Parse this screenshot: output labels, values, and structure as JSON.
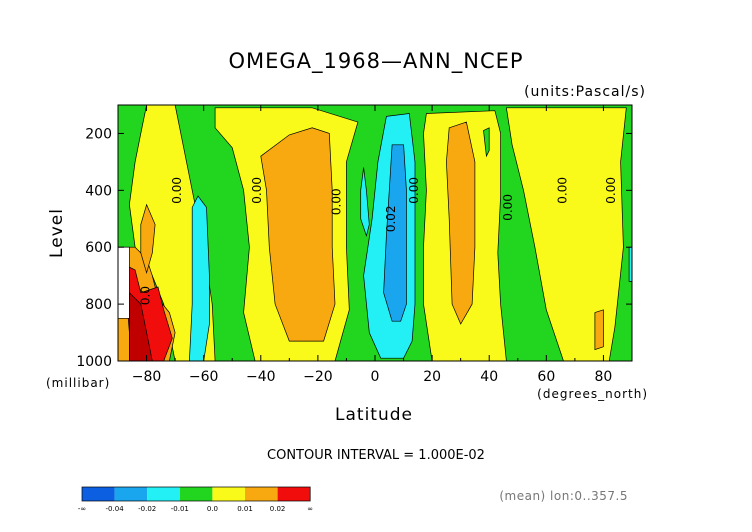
{
  "chart_data": {
    "type": "heatmap",
    "title": "OMEGA_1968—ANN_NCEP",
    "units_label": "(units:Pascal/s)",
    "xlabel": "Latitude",
    "ylabel": "Level",
    "x_unit_label": "(degrees_north)",
    "y_unit_label": "(millibar)",
    "xlim": [
      -90,
      90
    ],
    "ylim": [
      1000,
      100
    ],
    "x_ticks": [
      -80,
      -60,
      -40,
      -20,
      0,
      20,
      40,
      60,
      80
    ],
    "x_tick_labels": [
      "−80",
      "−60",
      "−40",
      "−20",
      "0",
      "20",
      "40",
      "60",
      "80"
    ],
    "y_ticks": [
      200,
      400,
      600,
      800,
      1000
    ],
    "y_tick_labels": [
      "200",
      "400",
      "600",
      "800",
      "1000"
    ],
    "contour_interval_text": "CONTOUR INTERVAL = 1.000E-02",
    "footnote": "(mean) lon:0..357.5",
    "contour_labels": [
      {
        "text": "0.00",
        "lat": -68,
        "p": 400
      },
      {
        "text": "0.00",
        "lat": -40,
        "p": 400
      },
      {
        "text": "0.00",
        "lat": -12,
        "p": 440
      },
      {
        "text": "0.02",
        "lat": 7,
        "p": 500
      },
      {
        "text": "0.00",
        "lat": 15,
        "p": 400
      },
      {
        "text": "0.00",
        "lat": 48,
        "p": 460
      },
      {
        "text": "0.00",
        "lat": 67,
        "p": 400
      },
      {
        "text": "0.00",
        "lat": 84,
        "p": 400
      },
      {
        "text": "0.0",
        "lat": -79,
        "p": 770
      }
    ],
    "colorbar": {
      "colors": [
        "#0b5fe0",
        "#1aa6ee",
        "#22f0f5",
        "#22d51f",
        "#fafa1a",
        "#f7a90f",
        "#f20d0d"
      ],
      "labels": [
        "-∞",
        "-0.04",
        "-0.02",
        "-0.01",
        "0.0",
        "0.01",
        "0.02",
        "∞"
      ]
    },
    "regions": [
      {
        "name": "background-zero-band",
        "level": "0.0 to 0.01",
        "color": "#22d51f",
        "lat": [
          -90,
          90
        ],
        "p": [
          100,
          1000
        ]
      },
      {
        "name": "yellow-south-polar",
        "level": "0.01 to 0.02",
        "color": "#fafa1a",
        "poly": [
          [
            -80,
            100
          ],
          [
            -70,
            100
          ],
          [
            -68,
            200
          ],
          [
            -64,
            400
          ],
          [
            -60,
            600
          ],
          [
            -57,
            800
          ],
          [
            -56,
            1000
          ],
          [
            -70,
            1000
          ],
          [
            -74,
            800
          ],
          [
            -78,
            700
          ],
          [
            -84,
            600
          ],
          [
            -86,
            450
          ],
          [
            -84,
            300
          ],
          [
            -82,
            200
          ]
        ]
      },
      {
        "name": "yellow-south-subtropics",
        "level": "0.0 to 0.01",
        "color": "#fafa1a",
        "poly": [
          [
            -56,
            110
          ],
          [
            -22,
            110
          ],
          [
            -6,
            160
          ],
          [
            -10,
            300
          ],
          [
            -10,
            600
          ],
          [
            -9,
            820
          ],
          [
            -14,
            1000
          ],
          [
            -42,
            1000
          ],
          [
            -46,
            830
          ],
          [
            -44,
            600
          ],
          [
            -46,
            400
          ],
          [
            -50,
            250
          ],
          [
            -56,
            180
          ]
        ]
      },
      {
        "name": "orange-south-subtropics",
        "level": "0.01 to 0.02",
        "color": "#f7a90f",
        "poly": [
          [
            -40,
            280
          ],
          [
            -30,
            205
          ],
          [
            -22,
            180
          ],
          [
            -16,
            200
          ],
          [
            -15,
            400
          ],
          [
            -15,
            600
          ],
          [
            -14,
            800
          ],
          [
            -18,
            930
          ],
          [
            -30,
            930
          ],
          [
            -35,
            800
          ],
          [
            -37,
            600
          ],
          [
            -38,
            400
          ]
        ]
      },
      {
        "name": "yellow-north-subtropics",
        "level": "0.0 to 0.01",
        "color": "#fafa1a",
        "poly": [
          [
            18,
            130
          ],
          [
            42,
            120
          ],
          [
            44,
            200
          ],
          [
            44,
            420
          ],
          [
            43,
            620
          ],
          [
            44,
            800
          ],
          [
            46,
            1000
          ],
          [
            20,
            1000
          ],
          [
            17,
            800
          ],
          [
            17,
            600
          ],
          [
            18,
            400
          ],
          [
            17,
            200
          ]
        ]
      },
      {
        "name": "orange-north-subtropics",
        "level": "0.01 to 0.02",
        "color": "#f7a90f",
        "poly": [
          [
            26,
            180
          ],
          [
            32,
            160
          ],
          [
            35,
            300
          ],
          [
            35,
            600
          ],
          [
            34,
            800
          ],
          [
            30,
            870
          ],
          [
            27,
            800
          ],
          [
            26,
            500
          ],
          [
            25,
            300
          ]
        ]
      },
      {
        "name": "yellow-north-midlat",
        "level": "0.0 to 0.01",
        "color": "#fafa1a",
        "poly": [
          [
            46,
            110
          ],
          [
            88,
            110
          ],
          [
            86,
            300
          ],
          [
            87,
            600
          ],
          [
            84,
            880
          ],
          [
            82,
            1000
          ],
          [
            66,
            1000
          ],
          [
            60,
            820
          ],
          [
            56,
            600
          ],
          [
            52,
            400
          ],
          [
            48,
            240
          ]
        ]
      },
      {
        "name": "orange-north-small",
        "level": "0.01 to 0.02",
        "color": "#f7a90f",
        "poly": [
          [
            77,
            830
          ],
          [
            80,
            820
          ],
          [
            80,
            950
          ],
          [
            77,
            960
          ]
        ]
      },
      {
        "name": "cyan-north-pole-edge",
        "level": "-0.01 to -0.0",
        "color": "#22f0f5",
        "poly": [
          [
            89,
            600
          ],
          [
            90,
            600
          ],
          [
            90,
            720
          ],
          [
            89,
            720
          ]
        ]
      },
      {
        "name": "cyan-south-ascent",
        "level": "-0.01 to -0.0",
        "color": "#22f0f5",
        "poly": [
          [
            -62,
            420
          ],
          [
            -59,
            460
          ],
          [
            -58,
            700
          ],
          [
            -58,
            870
          ],
          [
            -60,
            1000
          ],
          [
            -65,
            1000
          ],
          [
            -64,
            800
          ],
          [
            -64,
            600
          ],
          [
            -64,
            460
          ]
        ]
      },
      {
        "name": "cyan-itcz-small",
        "level": "-0.01 to -0.0",
        "color": "#22f0f5",
        "poly": [
          [
            -4,
            320
          ],
          [
            -3,
            400
          ],
          [
            -2,
            520
          ],
          [
            -3,
            560
          ],
          [
            -5,
            500
          ],
          [
            -5,
            400
          ]
        ]
      },
      {
        "name": "cyan-itcz",
        "level": "-0.02 to -0.01",
        "color": "#22f0f5",
        "poly": [
          [
            4,
            140
          ],
          [
            12,
            130
          ],
          [
            14,
            300
          ],
          [
            14,
            600
          ],
          [
            14,
            800
          ],
          [
            13,
            930
          ],
          [
            10,
            990
          ],
          [
            2,
            990
          ],
          [
            -2,
            900
          ],
          [
            -4,
            700
          ],
          [
            -1,
            500
          ],
          [
            1,
            300
          ]
        ]
      },
      {
        "name": "blue-itcz-core",
        "level": "-0.04 to -0.02",
        "color": "#1aa6ee",
        "poly": [
          [
            6,
            240
          ],
          [
            10,
            240
          ],
          [
            11,
            400
          ],
          [
            11,
            600
          ],
          [
            11,
            800
          ],
          [
            9,
            860
          ],
          [
            6,
            860
          ],
          [
            3,
            760
          ],
          [
            4,
            560
          ],
          [
            5,
            400
          ]
        ]
      },
      {
        "name": "orange-south-pole",
        "level": "0.01 to 0.02",
        "color": "#f7a90f",
        "poly": [
          [
            -84,
            600
          ],
          [
            -80,
            640
          ],
          [
            -78,
            700
          ],
          [
            -76,
            780
          ],
          [
            -72,
            830
          ],
          [
            -70,
            900
          ],
          [
            -72,
            1000
          ],
          [
            -90,
            1000
          ],
          [
            -90,
            600
          ]
        ]
      },
      {
        "name": "orange-south-pole-ridge",
        "level": "0.01 to 0.02",
        "color": "#f7a90f",
        "poly": [
          [
            -80,
            450
          ],
          [
            -77,
            520
          ],
          [
            -78,
            620
          ],
          [
            -80,
            690
          ],
          [
            -82,
            620
          ],
          [
            -82,
            520
          ]
        ]
      },
      {
        "name": "red-south-pole",
        "level": "> 0.02",
        "color": "#f20d0d",
        "poly": [
          [
            -88,
            660
          ],
          [
            -84,
            680
          ],
          [
            -82,
            760
          ],
          [
            -76,
            740
          ],
          [
            -74,
            820
          ],
          [
            -71,
            920
          ],
          [
            -74,
            1000
          ],
          [
            -84,
            1000
          ],
          [
            -86,
            900
          ]
        ]
      },
      {
        "name": "darkred-south-pole",
        "level": "> 0.02",
        "color": "#c00000",
        "poly": [
          [
            -86,
            760
          ],
          [
            -82,
            800
          ],
          [
            -80,
            900
          ],
          [
            -78,
            1000
          ],
          [
            -86,
            1000
          ]
        ]
      },
      {
        "name": "missing-below-surface",
        "level": "missing",
        "color": "#ffffff",
        "poly": [
          [
            -90,
            600
          ],
          [
            -86,
            600
          ],
          [
            -86,
            850
          ],
          [
            -90,
            850
          ]
        ]
      },
      {
        "name": "green-north-pocket",
        "level": "0.0 to 0.01",
        "color": "#22d51f",
        "poly": [
          [
            38,
            190
          ],
          [
            40,
            180
          ],
          [
            40,
            260
          ],
          [
            39,
            280
          ]
        ]
      }
    ]
  }
}
